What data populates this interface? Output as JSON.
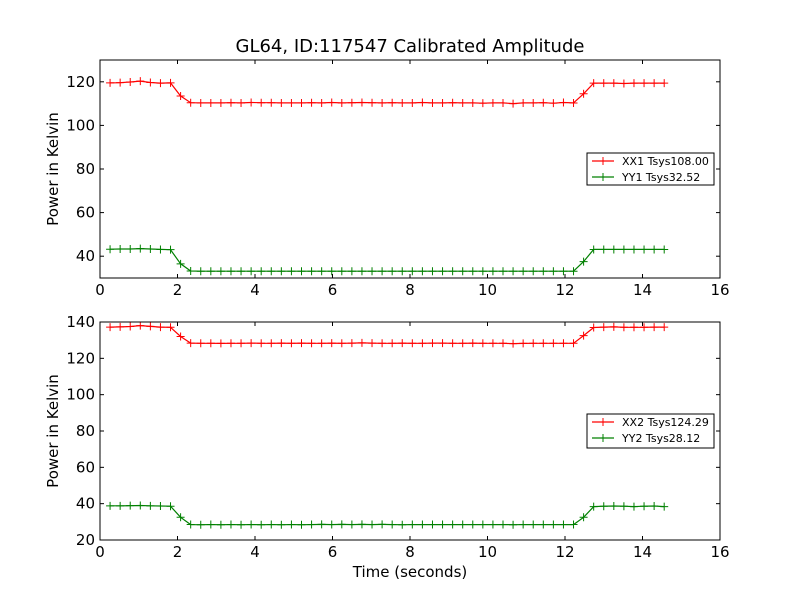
{
  "figure": {
    "title": "GL64, ID:117547 Calibrated Amplitude",
    "xlabel": "Time (seconds)"
  },
  "chart_data": [
    {
      "type": "line",
      "ylabel": "Power in Kelvin",
      "xlim": [
        0,
        16
      ],
      "ylim": [
        30,
        130
      ],
      "xticks": [
        0,
        2,
        4,
        6,
        8,
        10,
        12,
        14,
        16
      ],
      "yticks": [
        40,
        60,
        80,
        100,
        120
      ],
      "grid": false,
      "legend_position": "right",
      "x": [
        0.26,
        0.52,
        0.78,
        1.04,
        1.3,
        1.56,
        1.82,
        2.08,
        2.34,
        2.6,
        2.86,
        3.12,
        3.38,
        3.64,
        3.9,
        4.16,
        4.42,
        4.68,
        4.94,
        5.2,
        5.46,
        5.72,
        5.98,
        6.24,
        6.5,
        6.76,
        7.02,
        7.28,
        7.54,
        7.8,
        8.06,
        8.32,
        8.58,
        8.84,
        9.1,
        9.36,
        9.62,
        9.88,
        10.14,
        10.4,
        10.66,
        10.92,
        11.18,
        11.44,
        11.7,
        11.96,
        12.22,
        12.48,
        12.74,
        13.0,
        13.26,
        13.52,
        13.78,
        14.04,
        14.3,
        14.56
      ],
      "series": [
        {
          "name": "XX1 Tsys108.00",
          "color": "#ff0000",
          "values": [
            119.5,
            119.6,
            119.9,
            120.3,
            119.7,
            119.4,
            119.5,
            113.5,
            110.4,
            110.3,
            110.3,
            110.3,
            110.4,
            110.3,
            110.5,
            110.4,
            110.4,
            110.3,
            110.3,
            110.3,
            110.4,
            110.3,
            110.5,
            110.3,
            110.4,
            110.5,
            110.4,
            110.3,
            110.4,
            110.3,
            110.3,
            110.5,
            110.3,
            110.3,
            110.4,
            110.3,
            110.3,
            110.2,
            110.3,
            110.3,
            110.0,
            110.3,
            110.3,
            110.4,
            110.2,
            110.5,
            110.3,
            114.5,
            119.4,
            119.4,
            119.4,
            119.2,
            119.4,
            119.4,
            119.4,
            119.4
          ]
        },
        {
          "name": "YY1 Tsys32.52",
          "color": "#008000",
          "values": [
            43.2,
            43.3,
            43.3,
            43.5,
            43.3,
            43.1,
            43.0,
            36.5,
            33.2,
            33.1,
            33.1,
            33.1,
            33.1,
            33.1,
            33.1,
            33.1,
            33.1,
            33.1,
            33.1,
            33.1,
            33.1,
            33.1,
            33.1,
            33.1,
            33.1,
            33.1,
            33.1,
            33.1,
            33.1,
            33.1,
            33.1,
            33.1,
            33.1,
            33.1,
            33.1,
            33.1,
            33.1,
            33.1,
            33.1,
            33.1,
            33.1,
            33.1,
            33.1,
            33.1,
            33.1,
            33.1,
            33.1,
            37.5,
            43.1,
            43.1,
            43.1,
            43.1,
            43.1,
            43.1,
            43.1,
            43.1
          ]
        }
      ]
    },
    {
      "type": "line",
      "ylabel": "Power in Kelvin",
      "xlim": [
        0,
        16
      ],
      "ylim": [
        20,
        140
      ],
      "xticks": [
        0,
        2,
        4,
        6,
        8,
        10,
        12,
        14,
        16
      ],
      "yticks": [
        20,
        40,
        60,
        80,
        100,
        120,
        140
      ],
      "grid": false,
      "legend_position": "right",
      "x": [
        0.26,
        0.52,
        0.78,
        1.04,
        1.3,
        1.56,
        1.82,
        2.08,
        2.34,
        2.6,
        2.86,
        3.12,
        3.38,
        3.64,
        3.9,
        4.16,
        4.42,
        4.68,
        4.94,
        5.2,
        5.46,
        5.72,
        5.98,
        6.24,
        6.5,
        6.76,
        7.02,
        7.28,
        7.54,
        7.8,
        8.06,
        8.32,
        8.58,
        8.84,
        9.1,
        9.36,
        9.62,
        9.88,
        10.14,
        10.4,
        10.66,
        10.92,
        11.18,
        11.44,
        11.7,
        11.96,
        12.22,
        12.48,
        12.74,
        13.0,
        13.26,
        13.52,
        13.78,
        14.04,
        14.3,
        14.56
      ],
      "series": [
        {
          "name": "XX2 Tsys124.29",
          "color": "#ff0000",
          "values": [
            137.2,
            137.3,
            137.5,
            138.0,
            137.6,
            137.2,
            137.1,
            132.0,
            128.4,
            128.3,
            128.3,
            128.2,
            128.3,
            128.3,
            128.4,
            128.3,
            128.3,
            128.4,
            128.3,
            128.4,
            128.3,
            128.3,
            128.4,
            128.3,
            128.4,
            128.5,
            128.4,
            128.3,
            128.3,
            128.4,
            128.3,
            128.3,
            128.4,
            128.4,
            128.3,
            128.3,
            128.4,
            128.3,
            128.3,
            128.3,
            128.1,
            128.2,
            128.3,
            128.3,
            128.3,
            128.3,
            128.3,
            132.5,
            137.0,
            137.2,
            137.3,
            137.1,
            137.1,
            137.1,
            137.2,
            137.2
          ]
        },
        {
          "name": "YY2 Tsys28.12",
          "color": "#008000",
          "values": [
            38.8,
            38.8,
            38.9,
            39.0,
            38.8,
            38.7,
            38.6,
            32.5,
            28.5,
            28.4,
            28.5,
            28.4,
            28.5,
            28.4,
            28.5,
            28.4,
            28.5,
            28.4,
            28.5,
            28.4,
            28.5,
            28.6,
            28.5,
            28.6,
            28.5,
            28.6,
            28.5,
            28.6,
            28.5,
            28.4,
            28.5,
            28.5,
            28.5,
            28.5,
            28.5,
            28.5,
            28.5,
            28.5,
            28.5,
            28.5,
            28.4,
            28.5,
            28.5,
            28.5,
            28.5,
            28.5,
            28.5,
            32.5,
            38.4,
            38.6,
            38.7,
            38.6,
            38.4,
            38.6,
            38.7,
            38.4
          ]
        }
      ]
    }
  ]
}
